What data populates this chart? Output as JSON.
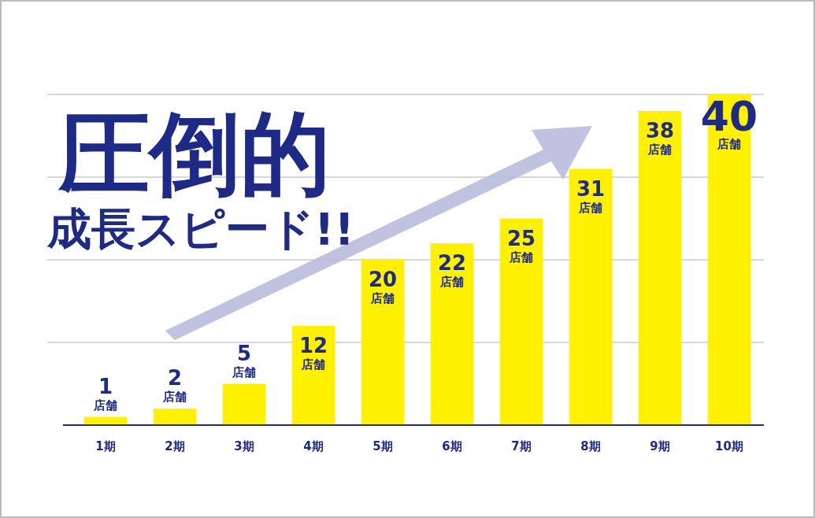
{
  "chart_data": {
    "type": "bar",
    "title": "圧倒的",
    "subtitle": "成長スピード!!",
    "categories": [
      "1期",
      "2期",
      "3期",
      "4期",
      "5期",
      "6期",
      "7期",
      "8期",
      "9期",
      "10期"
    ],
    "values": [
      1,
      2,
      5,
      12,
      20,
      22,
      25,
      31,
      38,
      40
    ],
    "value_labels": [
      "1\n店舗",
      "2\n店舗",
      "5\n店舗",
      "12\n店舗",
      "20\n店舗",
      "22\n店舗",
      "25\n店舗",
      "31\n店舗",
      "38\n店舗",
      "40\n店舗"
    ],
    "color": "#fff100",
    "ylim": [
      0,
      40
    ],
    "yticks": [
      {
        "value": 10,
        "label": null
      },
      {
        "value": 20,
        "label": null
      },
      {
        "value": 30,
        "label": null
      },
      {
        "value": 40,
        "label": null
      }
    ],
    "grid": "y",
    "tick_labels": "x"
  }
}
